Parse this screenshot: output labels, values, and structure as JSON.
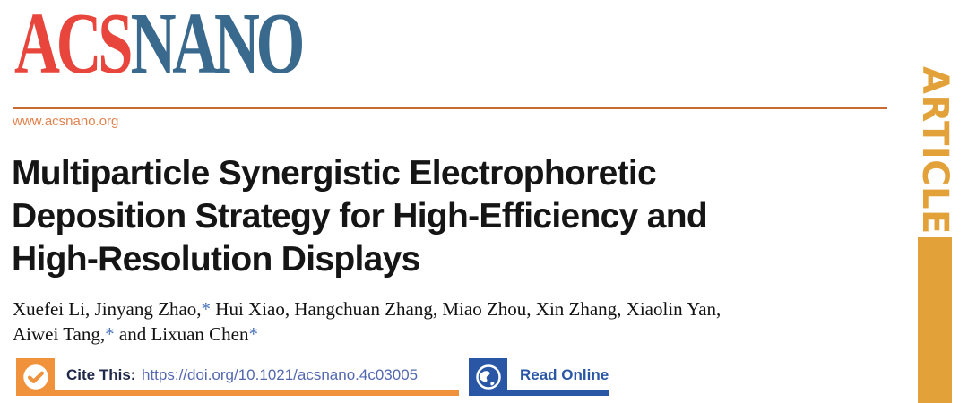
{
  "colors": {
    "acs_red": "#E8463C",
    "nano_blue": "#3A698E",
    "rule_orange": "#C96A32",
    "url_orange": "#E2824D",
    "ribbon_gold": "#E2A139",
    "badge_orange": "#F0913C",
    "cite_label_navy": "#21294A",
    "doi_blue": "#5468B0",
    "read_blue": "#2A57A5",
    "title_black": "#151515",
    "star_blue": "#4C74B9"
  },
  "masthead": {
    "journal_prefix": "ACS",
    "journal_name": "NANO",
    "website_url": "www.acsnano.org"
  },
  "ribbon": {
    "label": "ARTICLE"
  },
  "article": {
    "title_lines": [
      "Multiparticle Synergistic Electrophoretic",
      "Deposition Strategy for High-Efficiency and",
      "High-Resolution Displays"
    ],
    "authors_lines": [
      "Xuefei Li, Jinyang Zhao,* Hui Xiao, Hangchuan Zhang, Miao Zhou, Xin Zhang, Xiaolin Yan,",
      "Aiwei Tang,* and Lixuan Chen*"
    ]
  },
  "cite_bar": {
    "check_icon": "checkmark-circle-icon",
    "cite_label": "Cite This:",
    "doi_url": "https://doi.org/10.1021/acsnano.4c03005",
    "globe_icon": "globe-icon",
    "read_online_label": "Read Online"
  }
}
